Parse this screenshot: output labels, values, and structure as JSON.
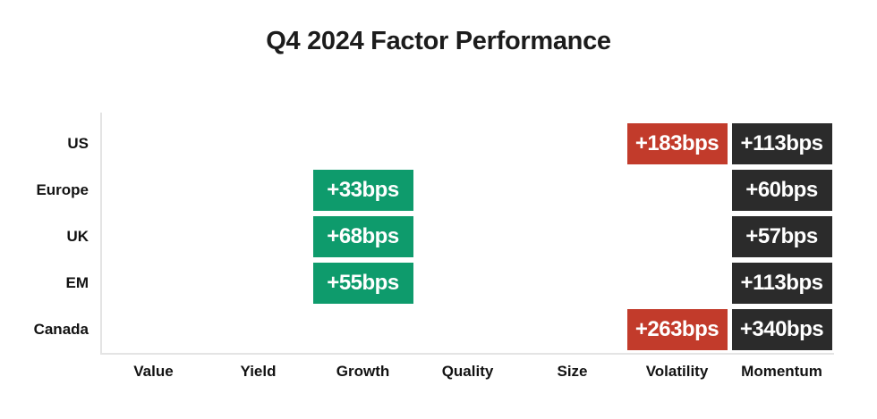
{
  "title": "Q4 2024 Factor Performance",
  "chart_data": {
    "type": "heatmap",
    "title": "Q4 2024 Factor Performance",
    "unit": "bps",
    "rows": [
      "US",
      "Europe",
      "UK",
      "EM",
      "Canada"
    ],
    "columns": [
      "Value",
      "Yield",
      "Growth",
      "Quality",
      "Size",
      "Volatility",
      "Momentum"
    ],
    "cells": [
      {
        "row": "US",
        "column": "Volatility",
        "value": 183,
        "label": "+183bps",
        "color": "red"
      },
      {
        "row": "US",
        "column": "Momentum",
        "value": 113,
        "label": "+113bps",
        "color": "dark"
      },
      {
        "row": "Europe",
        "column": "Growth",
        "value": 33,
        "label": "+33bps",
        "color": "green"
      },
      {
        "row": "Europe",
        "column": "Momentum",
        "value": 60,
        "label": "+60bps",
        "color": "dark"
      },
      {
        "row": "UK",
        "column": "Growth",
        "value": 68,
        "label": "+68bps",
        "color": "green"
      },
      {
        "row": "UK",
        "column": "Momentum",
        "value": 57,
        "label": "+57bps",
        "color": "dark"
      },
      {
        "row": "EM",
        "column": "Growth",
        "value": 55,
        "label": "+55bps",
        "color": "green"
      },
      {
        "row": "EM",
        "column": "Momentum",
        "value": 113,
        "label": "+113bps",
        "color": "dark"
      },
      {
        "row": "Canada",
        "column": "Volatility",
        "value": 263,
        "label": "+263bps",
        "color": "red"
      },
      {
        "row": "Canada",
        "column": "Momentum",
        "value": 340,
        "label": "+340bps",
        "color": "dark"
      }
    ],
    "colors": {
      "green": "#0e9b6c",
      "red": "#c23b2b",
      "dark": "#2b2b2b",
      "cell_text": "#ffffff"
    },
    "layout_hints": {
      "grid": "off",
      "legend": "none",
      "empty_columns": [
        "Value",
        "Yield",
        "Quality",
        "Size"
      ]
    }
  }
}
